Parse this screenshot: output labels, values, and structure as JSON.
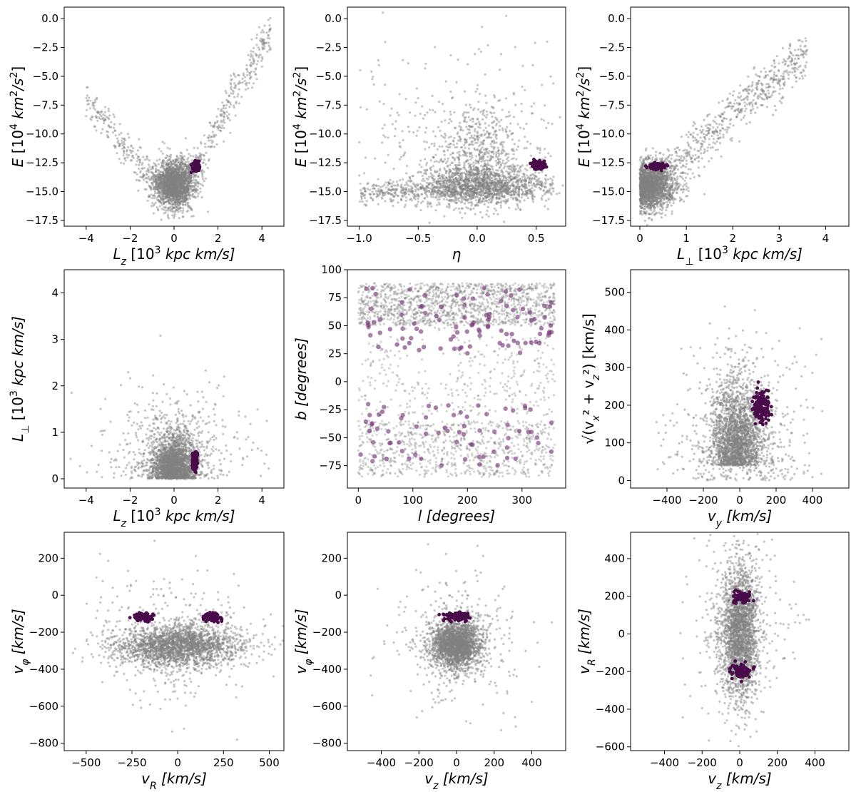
{
  "figure": {
    "panel_count": 9,
    "layout": "3x3 grid",
    "background_color": "#808080",
    "highlight_color": "#4a0b4a",
    "highlight_color_b_l": "#7a3a7a"
  },
  "chart_data": [
    {
      "type": "scatter",
      "xlabel": "L_z [10^3 kpc km/s]",
      "ylabel": "E [10^4 km^2/s^2]",
      "xlim": [
        -5,
        5
      ],
      "ylim": [
        -18,
        1
      ],
      "xticks": [
        "−4",
        "−2",
        "0",
        "2",
        "4"
      ],
      "yticks": [
        "0.0",
        "−2.5",
        "−5.0",
        "−7.5",
        "−10.0",
        "−12.5",
        "−15.0",
        "−17.5"
      ],
      "xtick_values": [
        -4,
        -2,
        0,
        2,
        4
      ],
      "ytick_values": [
        0,
        -2.5,
        -5,
        -7.5,
        -10,
        -12.5,
        -15,
        -17.5
      ],
      "series": [
        {
          "role": "background",
          "shape": "V-shaped envelope from (-4,-7) down to (0,-16.5) and up to (4.5,-1), dense core near (0,-14)"
        },
        {
          "role": "highlight",
          "center": [
            1.0,
            -12.8
          ],
          "spread": [
            0.12,
            0.35
          ]
        }
      ]
    },
    {
      "type": "scatter",
      "xlabel": "η",
      "ylabel": "E [10^4 km^2/s^2]",
      "xlim": [
        -1.1,
        0.75
      ],
      "ylim": [
        -18,
        1
      ],
      "xticks": [
        "−1.0",
        "−0.5",
        "0.0",
        "0.5"
      ],
      "yticks": [
        "0.0",
        "−2.5",
        "−5.0",
        "−7.5",
        "−10.0",
        "−12.5",
        "−15.0",
        "−17.5"
      ],
      "xtick_values": [
        -1.0,
        -0.5,
        0.0,
        0.5
      ],
      "ytick_values": [
        0,
        -2.5,
        -5,
        -7.5,
        -10,
        -12.5,
        -15,
        -17.5
      ],
      "series": [
        {
          "role": "background",
          "shape": "broad band near E=-14.5 across η, dense core near η=0"
        },
        {
          "role": "highlight",
          "center": [
            0.52,
            -12.7
          ],
          "spread": [
            0.04,
            0.25
          ]
        }
      ]
    },
    {
      "type": "scatter",
      "xlabel": "L_⊥ [10^3 kpc km/s]",
      "ylabel": "E [10^4 km^2/s^2]",
      "xlim": [
        -0.2,
        4.5
      ],
      "ylim": [
        -18,
        1
      ],
      "xticks": [
        "0",
        "1",
        "2",
        "3",
        "4"
      ],
      "yticks": [
        "0.0",
        "−2.5",
        "−5.0",
        "−7.5",
        "−10.0",
        "−12.5",
        "−15.0",
        "−17.5"
      ],
      "xtick_values": [
        0,
        1,
        2,
        3,
        4
      ],
      "ytick_values": [
        0,
        -2.5,
        -5,
        -7.5,
        -10,
        -12.5,
        -15,
        -17.5
      ],
      "series": [
        {
          "role": "background",
          "shape": "wedge starting at L_⊥≈0, E≈-15, widening toward high L_⊥"
        },
        {
          "role": "highlight",
          "center": [
            0.38,
            -12.8
          ],
          "spread": [
            0.12,
            0.2
          ]
        }
      ]
    },
    {
      "type": "scatter",
      "xlabel": "L_z [10^3 kpc km/s]",
      "ylabel": "L_⊥ [10^3 kpc km/s]",
      "xlim": [
        -5,
        5
      ],
      "ylim": [
        -0.2,
        4.5
      ],
      "xticks": [
        "−4",
        "−2",
        "0",
        "2",
        "4"
      ],
      "yticks": [
        "0",
        "1",
        "2",
        "3",
        "4"
      ],
      "xtick_values": [
        -4,
        -2,
        0,
        2,
        4
      ],
      "ytick_values": [
        0,
        1,
        2,
        3,
        4
      ],
      "series": [
        {
          "role": "background",
          "shape": "dome centred at L_z=0 extending to L_⊥≈1.5"
        },
        {
          "role": "highlight",
          "center": [
            0.95,
            0.38
          ],
          "spread": [
            0.08,
            0.15
          ]
        }
      ]
    },
    {
      "type": "scatter",
      "xlabel": "l [degrees]",
      "ylabel": "b [degrees]",
      "xlim": [
        -20,
        380
      ],
      "ylim": [
        -95,
        100
      ],
      "xticks": [
        "0",
        "100",
        "200",
        "300"
      ],
      "yticks": [
        "100",
        "75",
        "50",
        "25",
        "0",
        "−25",
        "−50",
        "−75"
      ],
      "xtick_values": [
        0,
        100,
        200,
        300
      ],
      "ytick_values": [
        100,
        75,
        50,
        25,
        0,
        -25,
        -50,
        -75
      ],
      "series": [
        {
          "role": "background",
          "shape": "sky footprint, dense at high |b|, sparse near b=0 except l~130"
        },
        {
          "role": "highlight",
          "shape": "scattered large circles across the whole sky footprint"
        }
      ]
    },
    {
      "type": "scatter",
      "xlabel": "v_y [km/s]",
      "ylabel": "√(v_x² + v_z²) [km/s]",
      "xlim": [
        -600,
        600
      ],
      "ylim": [
        -20,
        560
      ],
      "xticks": [
        "−400",
        "−200",
        "0",
        "200",
        "400"
      ],
      "yticks": [
        "0",
        "100",
        "200",
        "300",
        "400",
        "500"
      ],
      "xtick_values": [
        -400,
        -200,
        0,
        200,
        400
      ],
      "ytick_values": [
        0,
        100,
        200,
        300,
        400,
        500
      ],
      "series": [
        {
          "role": "background",
          "shape": "plume rising from (0,0), core around v_y≈-20, up to 350"
        },
        {
          "role": "highlight",
          "center": [
            120,
            195
          ],
          "spread": [
            35,
            30
          ]
        }
      ]
    },
    {
      "type": "scatter",
      "xlabel": "v_R [km/s]",
      "ylabel": "v_φ [km/s]",
      "xlim": [
        -620,
        580
      ],
      "ylim": [
        -840,
        340
      ],
      "xticks": [
        "−500",
        "−250",
        "0",
        "250",
        "500"
      ],
      "yticks": [
        "200",
        "0",
        "−200",
        "−400",
        "−600",
        "−800"
      ],
      "xtick_values": [
        -500,
        -250,
        0,
        250,
        500
      ],
      "ytick_values": [
        200,
        0,
        -200,
        -400,
        -600,
        -800
      ],
      "series": [
        {
          "role": "background",
          "shape": "horizontal band at v_φ≈-270, width ±350 in v_R"
        },
        {
          "role": "highlight",
          "clusters": [
            [
              -190,
              -120
            ],
            [
              190,
              -120
            ]
          ],
          "spread": [
            40,
            20
          ]
        }
      ]
    },
    {
      "type": "scatter",
      "xlabel": "v_z [km/s]",
      "ylabel": "v_φ [km/s]",
      "xlim": [
        -580,
        580
      ],
      "ylim": [
        -840,
        340
      ],
      "xticks": [
        "−400",
        "−200",
        "0",
        "200",
        "400"
      ],
      "yticks": [
        "200",
        "0",
        "−200",
        "−400",
        "−600",
        "−800"
      ],
      "xtick_values": [
        -400,
        -200,
        0,
        200,
        400
      ],
      "ytick_values": [
        200,
        0,
        -200,
        -400,
        -600,
        -800
      ],
      "series": [
        {
          "role": "background",
          "shape": "round blob centred at (0,-270)"
        },
        {
          "role": "highlight",
          "center": [
            0,
            -115
          ],
          "spread": [
            50,
            18
          ]
        }
      ]
    },
    {
      "type": "scatter",
      "xlabel": "v_z [km/s]",
      "ylabel": "v_R [km/s]",
      "xlim": [
        -580,
        580
      ],
      "ylim": [
        -620,
        540
      ],
      "xticks": [
        "−400",
        "−200",
        "0",
        "200",
        "400"
      ],
      "yticks": [
        "400",
        "200",
        "0",
        "−200",
        "−400",
        "−600"
      ],
      "xtick_values": [
        -400,
        -200,
        0,
        200,
        400
      ],
      "ytick_values": [
        400,
        200,
        0,
        -200,
        -400,
        -600
      ],
      "series": [
        {
          "role": "background",
          "shape": "vertical column centred on v_z=0, v_R from -400 to 400"
        },
        {
          "role": "highlight",
          "clusters": [
            [
              10,
              190
            ],
            [
              10,
              -195
            ]
          ],
          "spread": [
            45,
            30
          ]
        }
      ]
    }
  ]
}
